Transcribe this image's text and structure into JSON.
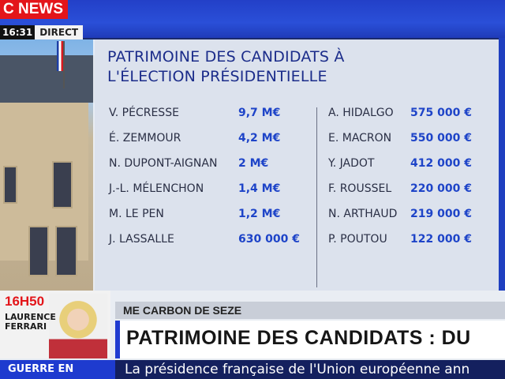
{
  "channel": {
    "brand": "C NEWS",
    "time": "16:31",
    "live_label": "DIRECT"
  },
  "panel": {
    "title_line1": "PATRIMOINE DES CANDIDATS À",
    "title_line2": "L'ÉLECTION PRÉSIDENTIELLE",
    "left": [
      {
        "name": "V. PÉCRESSE",
        "value": "9,7 M€"
      },
      {
        "name": "É. ZEMMOUR",
        "value": "4,2 M€"
      },
      {
        "name": "N. DUPONT-AIGNAN",
        "value": "2 M€"
      },
      {
        "name": "J.-L. MÉLENCHON",
        "value": "1,4 M€"
      },
      {
        "name": "M. LE PEN",
        "value": "1,2 M€"
      },
      {
        "name": "J. LASSALLE",
        "value": "630 000 €"
      }
    ],
    "right": [
      {
        "name": "A. HIDALGO",
        "value": "575 000 €"
      },
      {
        "name": "E. MACRON",
        "value": "550 000 €"
      },
      {
        "name": "Y. JADOT",
        "value": "412 000 €"
      },
      {
        "name": "F. ROUSSEL",
        "value": "220 000 €"
      },
      {
        "name": "N. ARTHAUD",
        "value": "219 000 €"
      },
      {
        "name": "P. POUTOU",
        "value": "122 000 €"
      }
    ]
  },
  "show": {
    "time": "16H50",
    "host_first": "LAURENCE",
    "host_last": "FERRARI"
  },
  "lower_third": {
    "subheading": "ME CARBON DE SEZE",
    "headline": "PATRIMOINE DES CANDIDATS : DU"
  },
  "ticker": {
    "label": "GUERRE EN",
    "text": "La présidence française de l'Union européenne ann"
  },
  "colors": {
    "brand_red": "#e3151a",
    "accent_blue": "#1e44c8",
    "title_blue": "#1b2c8a"
  }
}
